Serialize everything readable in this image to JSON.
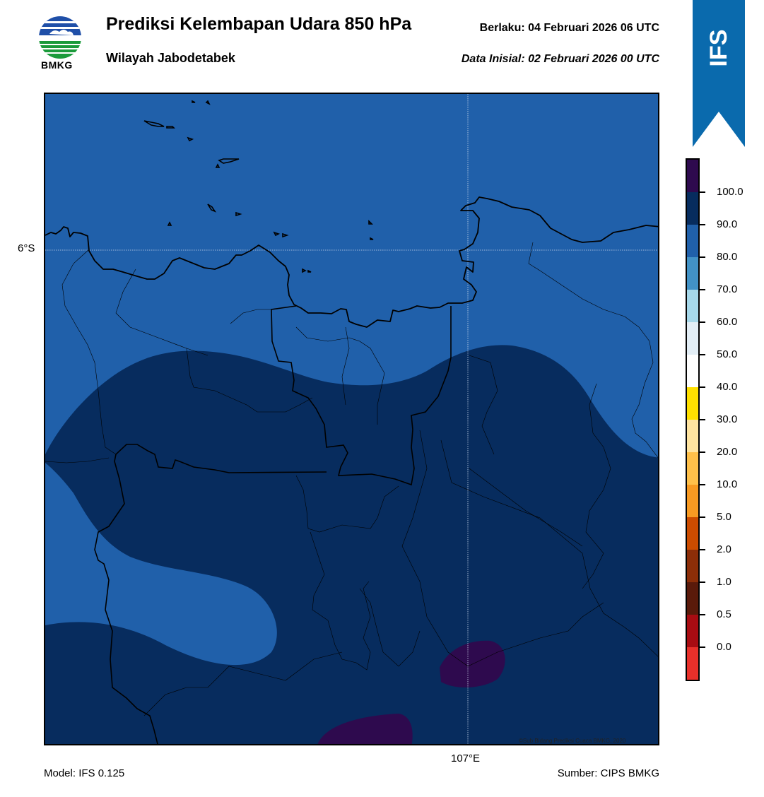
{
  "header": {
    "title": "Prediksi Kelembapan Udara 850 hPa",
    "subtitle": "Wilayah Jabodetabek",
    "valid_label": "Berlaku:  04 Februari 2026 06 UTC",
    "init_label": "Data Inisial:  02 Februari 2026 00 UTC"
  },
  "logo": {
    "text": "BMKG",
    "icon": "bmkg-logo-icon"
  },
  "ribbon": {
    "text": "IFS",
    "color": "#0a6aad"
  },
  "map": {
    "lat_label": "6°S",
    "lon_label": "107°E",
    "credit": "©Sub Bidang Prediksi Cuaca BMKG, 2020",
    "colors": {
      "band_80_90": "#2060aa",
      "band_90_100": "#072c5e",
      "band_100": "#2e0a4e"
    }
  },
  "colorbar": {
    "ticks": [
      "100.0",
      "90.0",
      "80.0",
      "70.0",
      "60.0",
      "50.0",
      "40.0",
      "30.0",
      "20.0",
      "10.0",
      "5.0",
      "2.0",
      "1.0",
      "0.5",
      "0.0"
    ],
    "colors": [
      "#2e0a4e",
      "#072c5e",
      "#2060aa",
      "#4292c6",
      "#a6d8ea",
      "#e3eef6",
      "#ffffff",
      "#ffe000",
      "#ffe4a0",
      "#ffc04a",
      "#f89a22",
      "#cc4c00",
      "#8c2e08",
      "#5a1a0a",
      "#a80c12",
      "#e8302a"
    ]
  },
  "footer": {
    "model": "Model: IFS 0.125",
    "source": "Sumber: CIPS BMKG"
  }
}
